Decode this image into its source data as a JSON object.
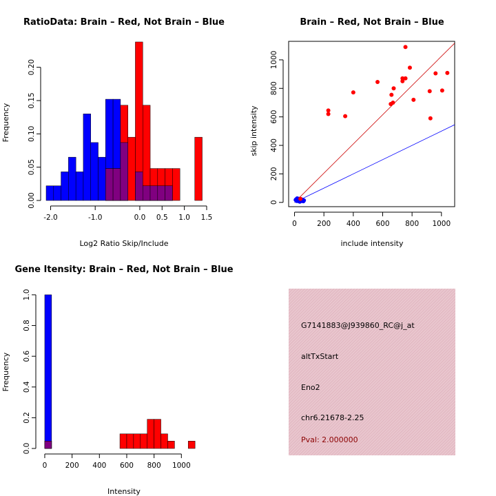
{
  "colors": {
    "brain": "#ff0000",
    "not_brain": "#0000ff",
    "overlap": "#800080",
    "info_bg": "#e8c4cc",
    "pval_text": "#8b0000"
  },
  "info_box": {
    "probe_id": "G7141883@J939860_RC@j_at",
    "event_type": "altTxStart",
    "gene": "Eno2",
    "location": "chr6.21678-2.25",
    "pval": "Pval: 2.000000"
  },
  "chart_data": [
    {
      "id": "ratio-hist",
      "type": "bar",
      "title": "RatioData: Brain – Red, Not Brain – Blue",
      "xlabel": "Log2 Ratio Skip/Include",
      "ylabel": "Frequency",
      "xlim": [
        -2.1,
        1.5
      ],
      "ylim": [
        0,
        0.24
      ],
      "x_ticks": [
        -2.0,
        -1.0,
        0.0,
        0.5,
        1.0,
        1.5
      ],
      "x_tick_labels": [
        "-2.0",
        "-1.0",
        "0.0",
        "0.5",
        "1.0",
        "1.5"
      ],
      "y_ticks": [
        0,
        0.05,
        0.1,
        0.15,
        0.2
      ],
      "y_tick_labels": [
        "0.00",
        "0.05",
        "0.10",
        "0.15",
        "0.20"
      ],
      "bin_width": 0.167,
      "series": [
        {
          "name": "Not Brain",
          "color": "blue",
          "bins": [
            [
              -2.1,
              0.022
            ],
            [
              -1.933,
              0.022
            ],
            [
              -1.767,
              0.043
            ],
            [
              -1.6,
              0.065
            ],
            [
              -1.433,
              0.043
            ],
            [
              -1.267,
              0.13
            ],
            [
              -1.1,
              0.087
            ],
            [
              -0.933,
              0.065
            ],
            [
              -0.767,
              0.152
            ],
            [
              -0.6,
              0.152
            ],
            [
              -0.433,
              0.087
            ],
            [
              -0.267,
              0.0
            ],
            [
              -0.1,
              0.043
            ],
            [
              0.067,
              0.022
            ],
            [
              0.233,
              0.022
            ],
            [
              0.4,
              0.022
            ],
            [
              0.567,
              0.022
            ]
          ]
        },
        {
          "name": "Brain",
          "color": "red",
          "bins": [
            [
              -0.767,
              0.048
            ],
            [
              -0.6,
              0.048
            ],
            [
              -0.433,
              0.143
            ],
            [
              -0.267,
              0.095
            ],
            [
              -0.1,
              0.238
            ],
            [
              0.067,
              0.143
            ],
            [
              0.233,
              0.048
            ],
            [
              0.4,
              0.048
            ],
            [
              0.567,
              0.048
            ],
            [
              0.733,
              0.048
            ],
            [
              1.233,
              0.095
            ]
          ]
        }
      ]
    },
    {
      "id": "intensity-scatter",
      "type": "scatter",
      "title": "Brain – Red, Not Brain – Blue",
      "xlabel": "include intensity",
      "ylabel": "skip intensity",
      "xlim": [
        -40,
        1090
      ],
      "ylim": [
        -30,
        1130
      ],
      "x_ticks": [
        0,
        200,
        400,
        600,
        800,
        1000
      ],
      "x_tick_labels": [
        "0",
        "200",
        "400",
        "600",
        "800",
        "1000"
      ],
      "y_ticks": [
        0,
        200,
        400,
        600,
        800,
        1000
      ],
      "y_tick_labels": [
        "0",
        "200",
        "400",
        "600",
        "800",
        "1000"
      ],
      "lines": [
        {
          "name": "Brain fit",
          "color": "red",
          "intercept": 0,
          "slope": 1.025
        },
        {
          "name": "Not Brain fit",
          "color": "blue",
          "intercept": 0,
          "slope": 0.5
        }
      ],
      "series": [
        {
          "name": "Brain",
          "color": "red",
          "points": [
            [
              230,
              645
            ],
            [
              230,
              620
            ],
            [
              345,
              605
            ],
            [
              400,
              772
            ],
            [
              565,
              845
            ],
            [
              655,
              690
            ],
            [
              660,
              755
            ],
            [
              670,
              700
            ],
            [
              675,
              800
            ],
            [
              735,
              850
            ],
            [
              735,
              870
            ],
            [
              755,
              1090
            ],
            [
              755,
              870
            ],
            [
              785,
              945
            ],
            [
              810,
              720
            ],
            [
              920,
              780
            ],
            [
              925,
              590
            ],
            [
              960,
              905
            ],
            [
              1005,
              785
            ],
            [
              1040,
              908
            ],
            [
              40,
              25
            ]
          ]
        },
        {
          "name": "Not Brain",
          "color": "blue",
          "points": [
            [
              8,
              18
            ],
            [
              12,
              22
            ],
            [
              15,
              10
            ],
            [
              18,
              28
            ],
            [
              22,
              12
            ],
            [
              25,
              20
            ],
            [
              28,
              8
            ],
            [
              30,
              25
            ],
            [
              33,
              15
            ],
            [
              36,
              5
            ],
            [
              40,
              18
            ],
            [
              42,
              12
            ],
            [
              46,
              22
            ],
            [
              50,
              10
            ],
            [
              55,
              16
            ],
            [
              60,
              8
            ],
            [
              64,
              14
            ]
          ]
        }
      ]
    },
    {
      "id": "gene-intensity-hist",
      "type": "bar",
      "title": "Gene Itensity: Brain – Red, Not Brain – Blue",
      "xlabel": "Intensity",
      "ylabel": "Frequency",
      "xlim": [
        -25,
        1185
      ],
      "ylim": [
        0,
        1.04
      ],
      "x_ticks": [
        0,
        200,
        400,
        600,
        800,
        1000
      ],
      "x_tick_labels": [
        "0",
        "200",
        "400",
        "600",
        "800",
        "1000"
      ],
      "y_ticks": [
        0,
        0.2,
        0.4,
        0.6,
        0.8,
        1.0
      ],
      "y_tick_labels": [
        "0.0",
        "0.2",
        "0.4",
        "0.6",
        "0.8",
        "1.0"
      ],
      "bin_width": 50,
      "series": [
        {
          "name": "Not Brain",
          "color": "blue",
          "bins": [
            [
              0,
              1.0
            ]
          ]
        },
        {
          "name": "Brain",
          "color": "red",
          "bins": [
            [
              0,
              0.048
            ],
            [
              550,
              0.095
            ],
            [
              600,
              0.095
            ],
            [
              650,
              0.095
            ],
            [
              700,
              0.095
            ],
            [
              750,
              0.19
            ],
            [
              800,
              0.19
            ],
            [
              850,
              0.095
            ],
            [
              900,
              0.048
            ],
            [
              1050,
              0.048
            ]
          ]
        }
      ]
    }
  ]
}
